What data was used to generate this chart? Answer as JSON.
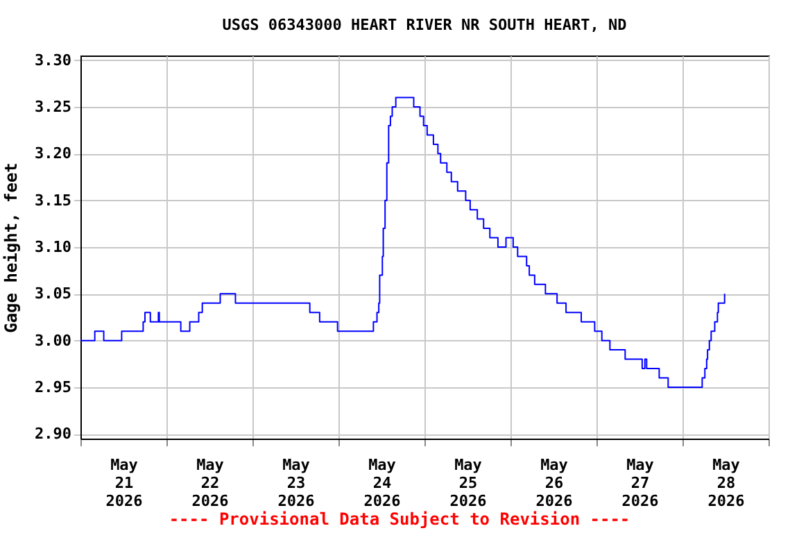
{
  "chart_data": {
    "type": "step",
    "title": "USGS 06343000 HEART RIVER NR SOUTH HEART, ND",
    "ylabel": "Gage height, feet",
    "annotations": [
      "---- Provisional Data Subject to Revision ----"
    ],
    "x": [
      "2026-05-21T00:00",
      "2026-05-21T04:00",
      "2026-05-21T06:30",
      "2026-05-21T11:30",
      "2026-05-21T17:30",
      "2026-05-21T18:00",
      "2026-05-21T19:30",
      "2026-05-21T21:45",
      "2026-05-21T22:00",
      "2026-05-22T04:00",
      "2026-05-22T06:30",
      "2026-05-22T09:00",
      "2026-05-22T10:00",
      "2026-05-22T15:00",
      "2026-05-22T19:15",
      "2026-05-23T16:00",
      "2026-05-23T18:45",
      "2026-05-23T23:45",
      "2026-05-24T09:45",
      "2026-05-24T10:45",
      "2026-05-24T11:15",
      "2026-05-24T11:30",
      "2026-05-24T12:15",
      "2026-05-24T12:30",
      "2026-05-24T13:00",
      "2026-05-24T13:30",
      "2026-05-24T14:00",
      "2026-05-24T14:30",
      "2026-05-24T15:00",
      "2026-05-24T16:00",
      "2026-05-24T21:00",
      "2026-05-24T22:45",
      "2026-05-24T23:45",
      "2026-05-25T00:45",
      "2026-05-25T02:30",
      "2026-05-25T03:45",
      "2026-05-25T04:30",
      "2026-05-25T06:15",
      "2026-05-25T07:30",
      "2026-05-25T09:15",
      "2026-05-25T11:30",
      "2026-05-25T12:45",
      "2026-05-25T14:45",
      "2026-05-25T16:30",
      "2026-05-25T18:15",
      "2026-05-25T20:30",
      "2026-05-25T22:45",
      "2026-05-26T00:45",
      "2026-05-26T02:00",
      "2026-05-26T04:30",
      "2026-05-26T05:15",
      "2026-05-26T06:45",
      "2026-05-26T09:45",
      "2026-05-26T13:00",
      "2026-05-26T15:30",
      "2026-05-26T19:45",
      "2026-05-26T23:30",
      "2026-05-27T01:30",
      "2026-05-27T03:45",
      "2026-05-27T08:00",
      "2026-05-27T12:45",
      "2026-05-27T13:30",
      "2026-05-27T14:00",
      "2026-05-27T17:30",
      "2026-05-27T20:00",
      "2026-05-28T05:30",
      "2026-05-28T06:15",
      "2026-05-28T06:45",
      "2026-05-28T07:00",
      "2026-05-28T07:30",
      "2026-05-28T08:00",
      "2026-05-28T09:00",
      "2026-05-28T09:45",
      "2026-05-28T10:00",
      "2026-05-28T11:45"
    ],
    "series": [
      {
        "color": "#0000ff",
        "values": [
          3.0,
          3.01,
          3.0,
          3.01,
          3.02,
          3.03,
          3.02,
          3.03,
          3.02,
          3.01,
          3.02,
          3.03,
          3.04,
          3.05,
          3.04,
          3.03,
          3.02,
          3.01,
          3.02,
          3.03,
          3.04,
          3.07,
          3.09,
          3.12,
          3.15,
          3.19,
          3.23,
          3.24,
          3.25,
          3.26,
          3.25,
          3.24,
          3.23,
          3.22,
          3.21,
          3.2,
          3.19,
          3.18,
          3.17,
          3.16,
          3.15,
          3.14,
          3.13,
          3.12,
          3.11,
          3.1,
          3.11,
          3.1,
          3.09,
          3.08,
          3.07,
          3.06,
          3.05,
          3.04,
          3.03,
          3.02,
          3.01,
          3.0,
          2.99,
          2.98,
          2.97,
          2.98,
          2.97,
          2.96,
          2.95,
          2.96,
          2.97,
          2.98,
          2.99,
          3.0,
          3.01,
          3.02,
          3.03,
          3.04,
          3.05
        ]
      }
    ],
    "xlim": [
      "2026-05-21T00:00",
      "2026-05-29T00:00"
    ],
    "xticks": [
      {
        "value": "2026-05-21T00:00",
        "label": null
      },
      {
        "value": "2026-05-21T12:00",
        "label": "May 21 2026"
      },
      {
        "value": "2026-05-22T00:00",
        "label": null
      },
      {
        "value": "2026-05-22T12:00",
        "label": "May 22 2026"
      },
      {
        "value": "2026-05-23T00:00",
        "label": null
      },
      {
        "value": "2026-05-23T12:00",
        "label": "May 23 2026"
      },
      {
        "value": "2026-05-24T00:00",
        "label": null
      },
      {
        "value": "2026-05-24T12:00",
        "label": "May 24 2026"
      },
      {
        "value": "2026-05-25T00:00",
        "label": null
      },
      {
        "value": "2026-05-25T12:00",
        "label": "May 25 2026"
      },
      {
        "value": "2026-05-26T00:00",
        "label": null
      },
      {
        "value": "2026-05-26T12:00",
        "label": "May 26 2026"
      },
      {
        "value": "2026-05-27T00:00",
        "label": null
      },
      {
        "value": "2026-05-27T12:00",
        "label": "May 27 2026"
      },
      {
        "value": "2026-05-28T00:00",
        "label": null
      },
      {
        "value": "2026-05-28T12:00",
        "label": "May 28 2026"
      },
      {
        "value": "2026-05-29T00:00",
        "label": null
      }
    ],
    "ylim": [
      2.895,
      3.305
    ],
    "yticks": [
      {
        "value": 2.9,
        "label": "2.90"
      },
      {
        "value": 2.95,
        "label": "2.95"
      },
      {
        "value": 3.0,
        "label": "3.00"
      },
      {
        "value": 3.05,
        "label": "3.05"
      },
      {
        "value": 3.1,
        "label": "3.10"
      },
      {
        "value": 3.15,
        "label": "3.15"
      },
      {
        "value": 3.2,
        "label": "3.20"
      },
      {
        "value": 3.25,
        "label": "3.25"
      },
      {
        "value": 3.3,
        "label": "3.30"
      }
    ],
    "grid": true
  }
}
